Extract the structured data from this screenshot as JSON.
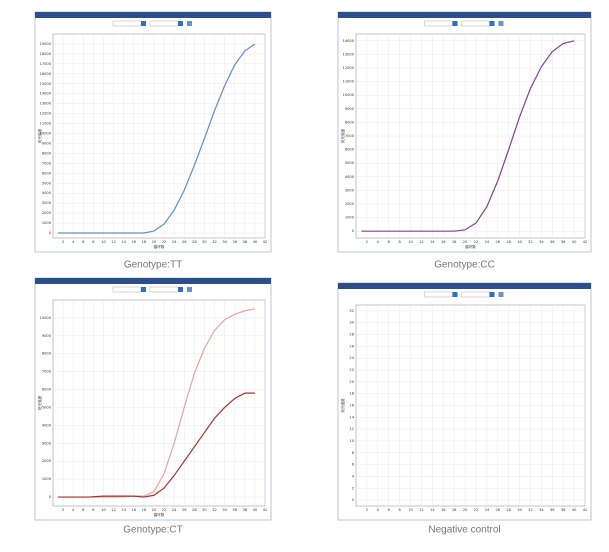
{
  "chart_data": [
    {
      "type": "line",
      "caption": "Genotype:TT",
      "ylabel": "荧光强度",
      "xlabel": "循环数",
      "x": [
        1,
        4,
        7,
        10,
        13,
        16,
        18,
        20,
        22,
        24,
        26,
        28,
        30,
        32,
        34,
        36,
        38,
        40
      ],
      "series": [
        {
          "color": "#5b8fd0",
          "values": [
            0,
            0,
            0,
            0,
            0,
            0,
            0,
            200,
            900,
            2300,
            4300,
            6800,
            9500,
            12300,
            14800,
            16900,
            18300,
            19000
          ]
        }
      ],
      "xlim": [
        0,
        42
      ],
      "xticks": [
        2,
        4,
        6,
        8,
        10,
        12,
        14,
        16,
        18,
        20,
        22,
        24,
        26,
        28,
        30,
        32,
        34,
        36,
        38,
        40,
        42
      ],
      "ylim": [
        -500,
        20000
      ],
      "yticks": [
        0,
        1000,
        2000,
        3000,
        4000,
        5000,
        6000,
        7000,
        8000,
        9000,
        10000,
        11000,
        12000,
        13000,
        14000,
        15000,
        16000,
        17000,
        18000,
        19000
      ],
      "grid": true
    },
    {
      "type": "line",
      "caption": "Genotype:CC",
      "ylabel": "荧光强度",
      "xlabel": "循环数",
      "x": [
        1,
        4,
        7,
        10,
        13,
        16,
        18,
        20,
        22,
        24,
        26,
        28,
        30,
        32,
        34,
        36,
        38,
        40
      ],
      "series": [
        {
          "color": "#8b3a9e",
          "values": [
            0,
            0,
            0,
            0,
            0,
            0,
            0,
            100,
            600,
            1800,
            3700,
            6000,
            8400,
            10500,
            12100,
            13200,
            13800,
            14000
          ]
        }
      ],
      "xlim": [
        0,
        42
      ],
      "xticks": [
        2,
        4,
        6,
        8,
        10,
        12,
        14,
        16,
        18,
        20,
        22,
        24,
        26,
        28,
        30,
        32,
        34,
        36,
        38,
        40,
        42
      ],
      "ylim": [
        -500,
        14500
      ],
      "yticks": [
        0,
        1000,
        2000,
        3000,
        4000,
        5000,
        6000,
        7000,
        8000,
        9000,
        10000,
        11000,
        12000,
        13000,
        14000
      ],
      "grid": true
    },
    {
      "type": "line",
      "caption": "Genotype:CT",
      "ylabel": "荧光强度",
      "xlabel": "循环数",
      "x": [
        1,
        4,
        7,
        10,
        13,
        16,
        18,
        20,
        22,
        24,
        26,
        28,
        30,
        32,
        34,
        36,
        38,
        40
      ],
      "series": [
        {
          "color": "#e8a3a3",
          "values": [
            0,
            0,
            0,
            0,
            0,
            50,
            50,
            300,
            1300,
            3000,
            5000,
            6900,
            8300,
            9300,
            9900,
            10200,
            10400,
            10500
          ]
        },
        {
          "color": "#a8322d",
          "values": [
            0,
            0,
            0,
            50,
            50,
            50,
            0,
            100,
            500,
            1200,
            2000,
            2800,
            3600,
            4400,
            5000,
            5500,
            5800,
            5800
          ]
        }
      ],
      "xlim": [
        0,
        42
      ],
      "xticks": [
        2,
        4,
        6,
        8,
        10,
        12,
        14,
        16,
        18,
        20,
        22,
        24,
        26,
        28,
        30,
        32,
        34,
        36,
        38,
        40,
        42
      ],
      "ylim": [
        -500,
        11000
      ],
      "yticks": [
        0,
        1000,
        2000,
        3000,
        4000,
        5000,
        6000,
        7000,
        8000,
        9000,
        10000
      ],
      "grid": true
    },
    {
      "type": "line",
      "caption": "Negative control",
      "ylabel": "荧光强度",
      "x": [],
      "series": [],
      "xlim": [
        0,
        42
      ],
      "xticks": [
        2,
        4,
        6,
        8,
        10,
        12,
        14,
        16,
        18,
        20,
        22,
        24,
        26,
        28,
        30,
        32,
        34,
        36,
        38,
        40,
        42
      ],
      "ylim": [
        -1,
        33
      ],
      "yticks": [
        0,
        2,
        4,
        6,
        8,
        10,
        12,
        14,
        16,
        18,
        20,
        22,
        24,
        26,
        28,
        30,
        32
      ],
      "grid": true
    }
  ]
}
